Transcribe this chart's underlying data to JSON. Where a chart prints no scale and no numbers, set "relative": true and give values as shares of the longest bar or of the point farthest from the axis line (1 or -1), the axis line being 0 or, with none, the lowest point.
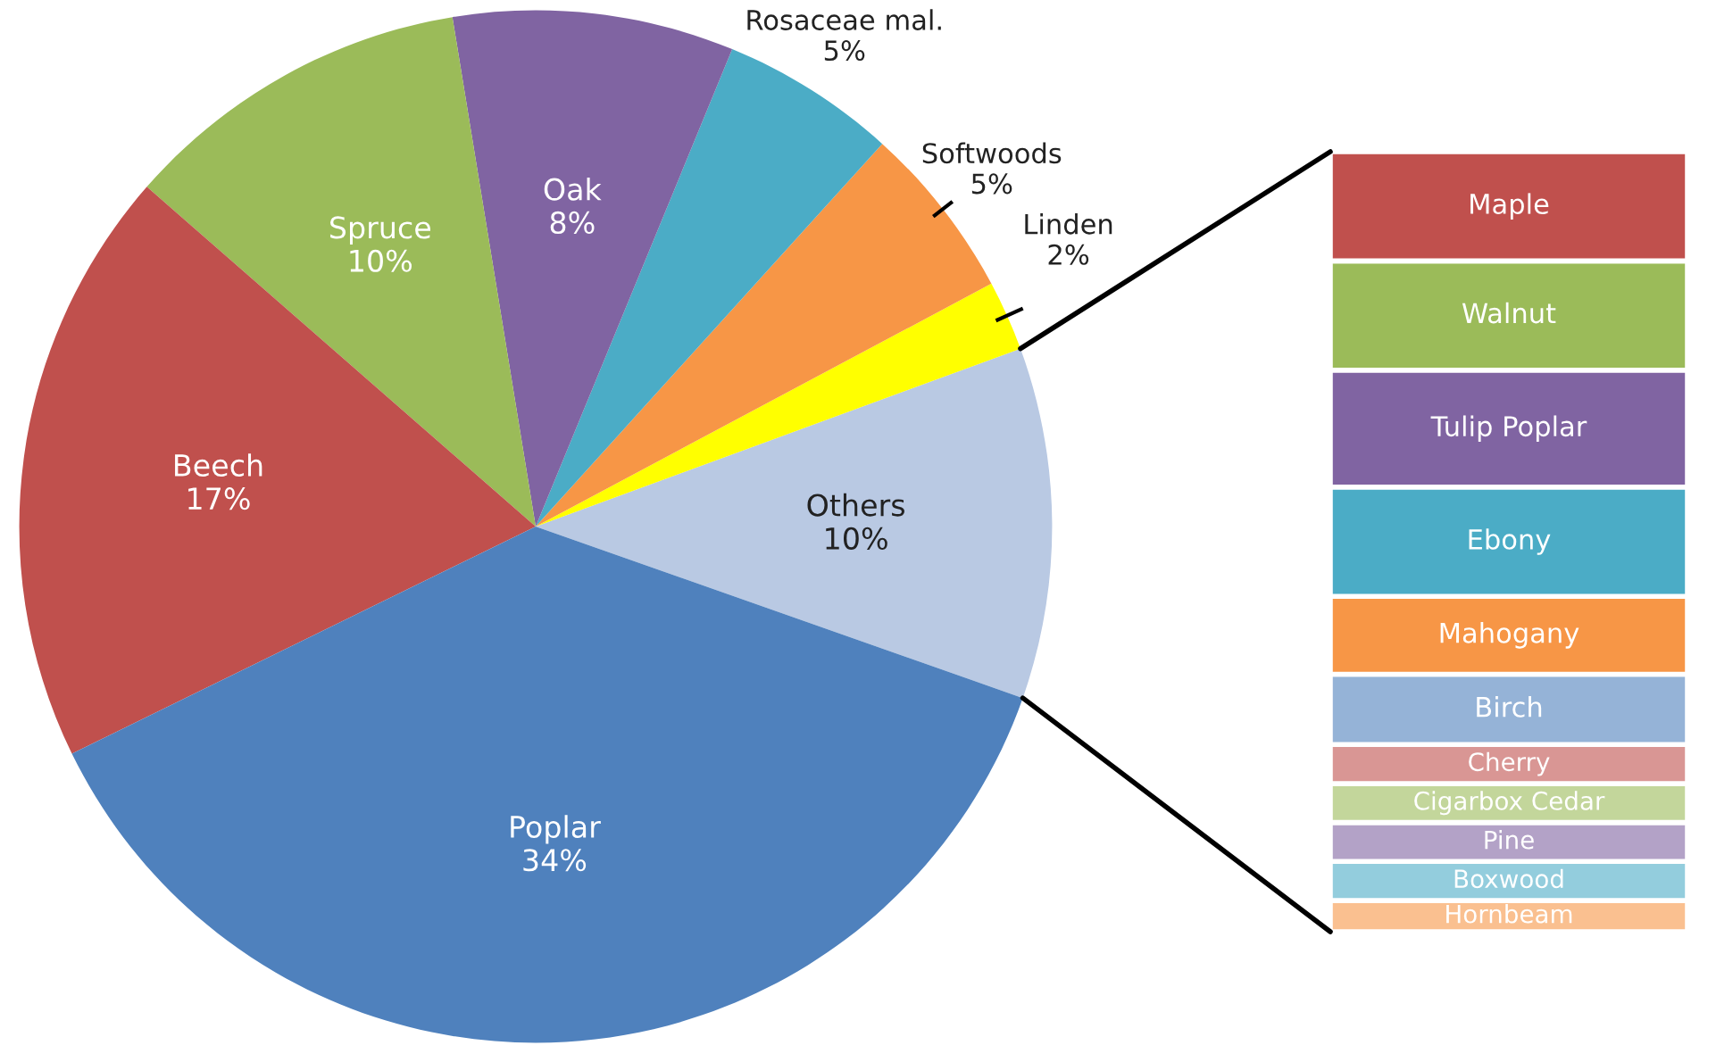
{
  "chart_data": [
    {
      "type": "pie",
      "categories": [
        "Others",
        "Linden",
        "Softwoods",
        "Rosaceae mal.",
        "Oak",
        "Spruce",
        "Beech",
        "Poplar"
      ],
      "values": [
        10,
        2,
        5,
        5,
        8,
        10,
        17,
        34
      ],
      "value_labels": [
        "10%",
        "2%",
        "5%",
        "5%",
        "8%",
        "10%",
        "17%",
        "34%"
      ],
      "colors": [
        "#b9c9e3",
        "#ffff00",
        "#f79646",
        "#4bacc6",
        "#8064a2",
        "#9bbb59",
        "#c0504d",
        "#4f81bd"
      ]
    },
    {
      "type": "bar",
      "stacked": true,
      "relative": true,
      "categories": [
        null
      ],
      "series": [
        {
          "name": "Hornbeam",
          "color": "#fac090",
          "values": [
            0.04
          ]
        },
        {
          "name": "Boxwood",
          "color": "#93cddd",
          "values": [
            0.05
          ]
        },
        {
          "name": "Pine",
          "color": "#b3a2c7",
          "values": [
            0.05
          ]
        },
        {
          "name": "Cigarbox Cedar",
          "color": "#c3d69b",
          "values": [
            0.05
          ]
        },
        {
          "name": "Cherry",
          "color": "#d99694",
          "values": [
            0.05
          ]
        },
        {
          "name": "Birch",
          "color": "#95b3d7",
          "values": [
            0.09
          ]
        },
        {
          "name": "Mahogany",
          "color": "#f79646",
          "values": [
            0.1
          ]
        },
        {
          "name": "Ebony",
          "color": "#4bacc6",
          "values": [
            0.14
          ]
        },
        {
          "name": "Tulip Poplar",
          "color": "#8064a2",
          "values": [
            0.15
          ]
        },
        {
          "name": "Walnut",
          "color": "#9bbb59",
          "values": [
            0.14
          ]
        },
        {
          "name": "Maple",
          "color": "#c0504d",
          "values": [
            0.14
          ]
        }
      ]
    }
  ]
}
